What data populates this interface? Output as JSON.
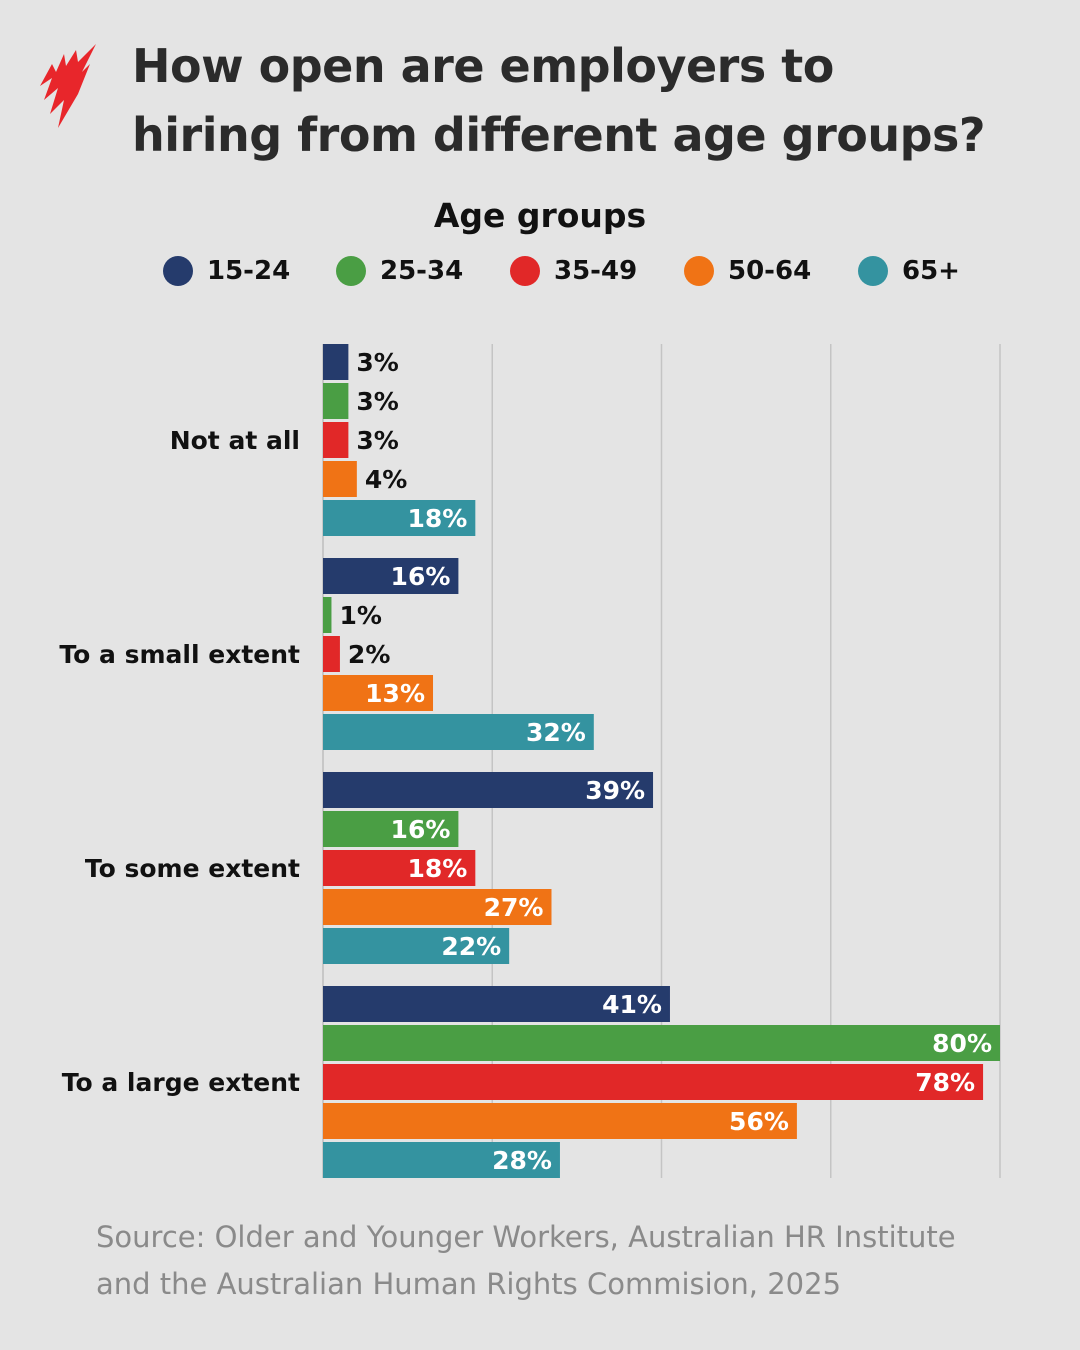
{
  "title_lines": [
    "How open are employers to",
    "hiring from different age groups?"
  ],
  "logo": {
    "icon": "sbs-logo-icon",
    "color": "#e8262b"
  },
  "legend_title": "Age groups",
  "source_lines": [
    "Source: Older and  Younger  Workers,  Australian HR Institute",
    "and the Australian Human Rights Commision, 2025"
  ],
  "chart_data": {
    "type": "bar",
    "orientation": "horizontal",
    "title": "How open are employers to hiring from different age groups?",
    "legend_title": "Age groups",
    "legend_placement": "top",
    "categories": [
      "Not at all",
      "To a small extent",
      "To some extent",
      "To a large extent"
    ],
    "series": [
      {
        "name": "15-24",
        "color": "#253b6c",
        "values": [
          3,
          16,
          39,
          41
        ]
      },
      {
        "name": "25-34",
        "color": "#4a9e44",
        "values": [
          3,
          1,
          16,
          80
        ]
      },
      {
        "name": "35-49",
        "color": "#e12828",
        "values": [
          3,
          2,
          18,
          78
        ]
      },
      {
        "name": "50-64",
        "color": "#f07315",
        "values": [
          4,
          13,
          27,
          56
        ]
      },
      {
        "name": "65+",
        "color": "#3493a0",
        "values": [
          18,
          32,
          22,
          28
        ]
      }
    ],
    "value_suffix": "%",
    "xlim": [
      0,
      80
    ],
    "grid": true,
    "grid_step": 20
  }
}
